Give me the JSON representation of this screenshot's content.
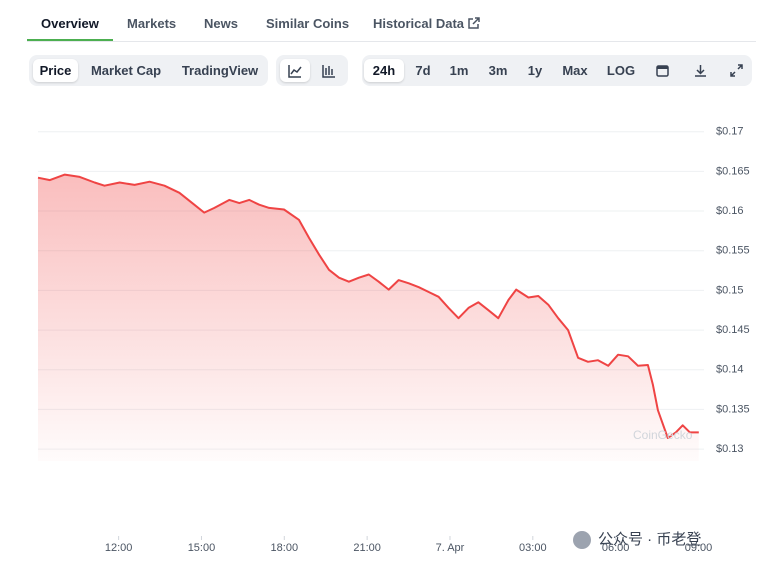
{
  "tabs": [
    "Overview",
    "Markets",
    "News",
    "Similar Coins",
    "Historical Data"
  ],
  "controls": {
    "view": [
      "Price",
      "Market Cap",
      "TradingView"
    ],
    "ranges": [
      "24h",
      "7d",
      "1m",
      "3m",
      "1y",
      "Max",
      "LOG"
    ]
  },
  "chart_data": {
    "type": "line",
    "color": "#ef4444",
    "grid": true,
    "x": [
      9.08,
      9.51,
      10.05,
      10.59,
      11.13,
      11.49,
      12.04,
      12.58,
      13.12,
      13.66,
      14.2,
      14.74,
      15.1,
      15.47,
      16.01,
      16.37,
      16.73,
      17.09,
      17.45,
      17.99,
      18.53,
      18.9,
      19.26,
      19.62,
      19.98,
      20.34,
      20.7,
      21.06,
      21.42,
      21.78,
      22.14,
      22.51,
      22.87,
      23.23,
      23.59,
      23.95,
      24.31,
      24.67,
      25.03,
      25.39,
      25.75,
      26.12,
      26.4,
      26.84,
      27.2,
      27.56,
      27.92,
      28.28,
      28.64,
      29.0,
      29.36,
      29.73,
      30.09,
      30.45,
      30.81,
      31.17,
      31.35,
      31.53,
      31.89,
      32.18,
      32.43,
      32.69,
      33.01
    ],
    "values": [
      0.1642,
      0.1639,
      0.1646,
      0.1643,
      0.1636,
      0.1632,
      0.1636,
      0.1633,
      0.1637,
      0.1632,
      0.1623,
      0.1608,
      0.1598,
      0.1604,
      0.1614,
      0.161,
      0.1614,
      0.1608,
      0.1604,
      0.1602,
      0.1589,
      0.1566,
      0.1545,
      0.1526,
      0.1516,
      0.1511,
      0.1516,
      0.152,
      0.1511,
      0.1501,
      0.1513,
      0.1509,
      0.1504,
      0.1498,
      0.1492,
      0.1478,
      0.1465,
      0.1478,
      0.1485,
      0.1475,
      0.1465,
      0.1488,
      0.1501,
      0.1491,
      0.1493,
      0.1482,
      0.1465,
      0.145,
      0.1415,
      0.141,
      0.1412,
      0.1405,
      0.1419,
      0.1417,
      0.1405,
      0.1406,
      0.1381,
      0.1349,
      0.1314,
      0.1321,
      0.133,
      0.1321,
      0.1321
    ],
    "xlim": [
      9.08,
      33.2
    ],
    "xticks": [
      {
        "value": 12,
        "label": "12:00"
      },
      {
        "value": 15,
        "label": "15:00"
      },
      {
        "value": 18,
        "label": "18:00"
      },
      {
        "value": 21,
        "label": "21:00"
      },
      {
        "value": 24,
        "label": "7. Apr"
      },
      {
        "value": 27,
        "label": "03:00"
      },
      {
        "value": 30,
        "label": "06:00"
      },
      {
        "value": 33,
        "label": "09:00"
      }
    ],
    "ylim": [
      0.1285,
      0.1745
    ],
    "yticks": [
      {
        "value": 0.13,
        "label": "$0.13"
      },
      {
        "value": 0.135,
        "label": "$0.135"
      },
      {
        "value": 0.14,
        "label": "$0.14"
      },
      {
        "value": 0.145,
        "label": "$0.145"
      },
      {
        "value": 0.15,
        "label": "$0.15"
      },
      {
        "value": 0.155,
        "label": "$0.155"
      },
      {
        "value": 0.16,
        "label": "$0.16"
      },
      {
        "value": 0.165,
        "label": "$0.165"
      },
      {
        "value": 0.17,
        "label": "$0.17"
      }
    ],
    "watermark": "CoinGecko"
  },
  "overlay": "公众号 · 币老登"
}
